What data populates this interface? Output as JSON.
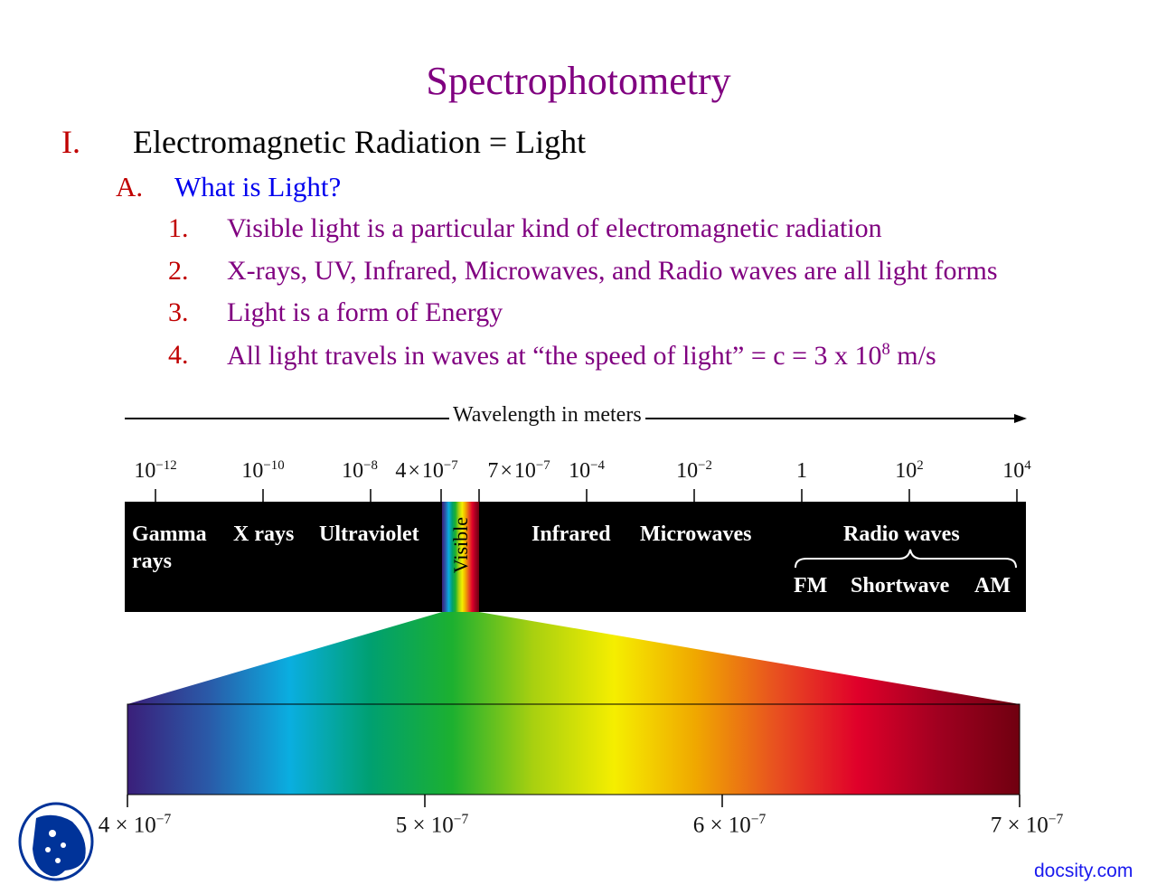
{
  "slide": {
    "title": "Spectrophotometry",
    "section": {
      "number": "I.",
      "text": "Electromagnetic Radiation = Light"
    },
    "subsection": {
      "number": "A.",
      "text": "What is Light?"
    },
    "items": [
      {
        "number": "1.",
        "text": "Visible light is a particular kind of electromagnetic radiation"
      },
      {
        "number": "2.",
        "text": "X-rays, UV, Infrared, Microwaves, and Radio waves are all light forms"
      },
      {
        "number": "3.",
        "text": "Light is a form of Energy"
      },
      {
        "number": "4.",
        "text_before": "All light travels in waves at “the speed of light” = c = 3 x 10",
        "exponent": "8",
        "text_after": " m/s"
      }
    ]
  },
  "spectrum": {
    "axis_label": "Wavelength in meters",
    "ticks": [
      {
        "base": "10",
        "exp": "−12"
      },
      {
        "base": "10",
        "exp": "−10"
      },
      {
        "base": "10",
        "exp": "−8"
      },
      {
        "base": "4 × 10",
        "exp": "−7"
      },
      {
        "base": "7 × 10",
        "exp": "−7"
      },
      {
        "base": "10",
        "exp": "−4"
      },
      {
        "base": "10",
        "exp": "−2"
      },
      {
        "base": "1",
        "exp": ""
      },
      {
        "base": "10",
        "exp": "2"
      },
      {
        "base": "10",
        "exp": "4"
      }
    ],
    "bands": {
      "gamma": "Gamma",
      "gamma2": "rays",
      "xray": "X rays",
      "uv": "Ultraviolet",
      "visible": "Visible",
      "ir": "Infrared",
      "micro": "Microwaves",
      "radio": "Radio waves",
      "fm": "FM",
      "shortwave": "Shortwave",
      "am": "AM"
    },
    "visible_ticks": [
      {
        "base": "4 × 10",
        "exp": "−7"
      },
      {
        "base": "5 × 10",
        "exp": "−7"
      },
      {
        "base": "6 × 10",
        "exp": "−7"
      },
      {
        "base": "7 × 10",
        "exp": "−7"
      }
    ],
    "colors": [
      "#3a1f7a",
      "#2a5aa8",
      "#0aaee0",
      "#00a070",
      "#1cb030",
      "#a8d010",
      "#f5ee00",
      "#f0a800",
      "#e85020",
      "#e0002a",
      "#a00020",
      "#700010"
    ]
  },
  "footer": {
    "brand": "docsity.com",
    "logo_color": "#003399"
  }
}
